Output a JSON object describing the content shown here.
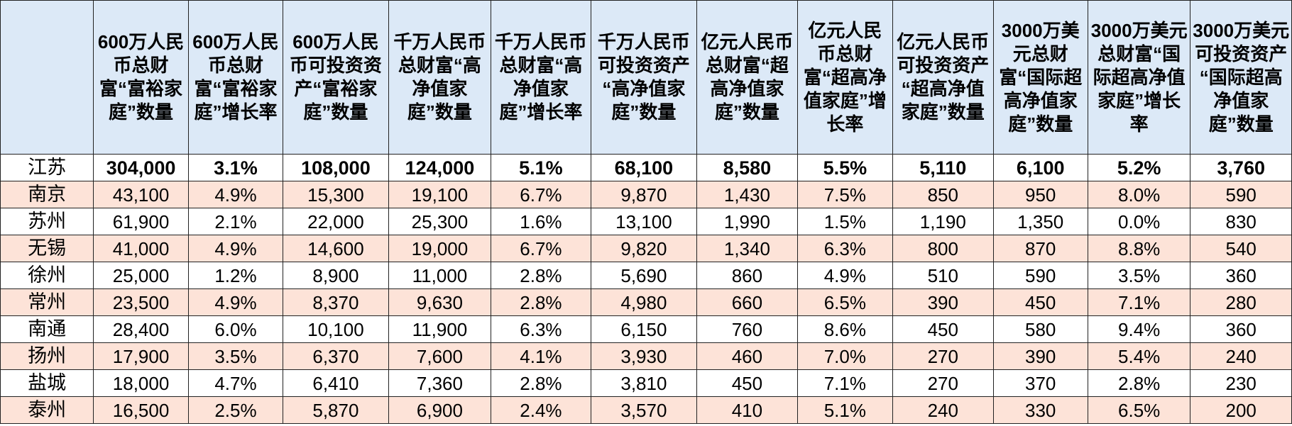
{
  "headers": [
    "",
    "600万人民币总财富“富裕家庭”数量",
    "600万人民币总财富“富裕家庭”增长率",
    "600万人民币可投资资产“富裕家庭”数量",
    "千万人民币总财富“高净值家庭”数量",
    "千万人民币总财富“高净值家庭”增长率",
    "千万人民币可投资资产 “高净值家庭”数量",
    "亿元人民币总财富“超高净值家庭”数量",
    "亿元人民币总财富“超高净值家庭”增长率",
    "亿元人民币可投资资产 “超高净值家庭”数量",
    "3000万美元总财富“国际超高净值家庭”数量",
    "3000万美元总财富“国际超高净值家庭”增长率",
    "3000万美元可投资资产 “国际超高净值家庭”数量"
  ],
  "rows": [
    [
      "江苏",
      "304,000",
      "3.1%",
      "108,000",
      "124,000",
      "5.1%",
      "68,100",
      "8,580",
      "5.5%",
      "5,110",
      "6,100",
      "5.2%",
      "3,760"
    ],
    [
      "南京",
      "43,100",
      "4.9%",
      "15,300",
      "19,100",
      "6.7%",
      "9,870",
      "1,430",
      "7.5%",
      "850",
      "950",
      "8.0%",
      "590"
    ],
    [
      "苏州",
      "61,900",
      "2.1%",
      "22,000",
      "25,300",
      "1.6%",
      "13,100",
      "1,990",
      "1.5%",
      "1,190",
      "1,350",
      "0.0%",
      "830"
    ],
    [
      "无锡",
      "41,000",
      "4.9%",
      "14,600",
      "19,000",
      "6.7%",
      "9,820",
      "1,340",
      "6.3%",
      "800",
      "870",
      "8.8%",
      "540"
    ],
    [
      "徐州",
      "25,000",
      "1.2%",
      "8,900",
      "11,000",
      "2.8%",
      "5,690",
      "860",
      "4.9%",
      "510",
      "590",
      "3.5%",
      "360"
    ],
    [
      "常州",
      "23,500",
      "4.9%",
      "8,370",
      "9,630",
      "2.8%",
      "4,980",
      "660",
      "6.5%",
      "390",
      "450",
      "7.1%",
      "280"
    ],
    [
      "南通",
      "28,400",
      "6.0%",
      "10,100",
      "11,900",
      "6.3%",
      "6,150",
      "760",
      "8.6%",
      "450",
      "580",
      "9.4%",
      "360"
    ],
    [
      "扬州",
      "17,900",
      "3.5%",
      "6,370",
      "7,600",
      "4.1%",
      "3,930",
      "460",
      "7.0%",
      "270",
      "390",
      "5.4%",
      "240"
    ],
    [
      "盐城",
      "18,000",
      "4.7%",
      "6,410",
      "7,360",
      "2.8%",
      "3,810",
      "450",
      "7.1%",
      "270",
      "370",
      "2.8%",
      "230"
    ],
    [
      "泰州",
      "16,500",
      "2.5%",
      "5,870",
      "6,900",
      "2.4%",
      "3,570",
      "410",
      "5.1%",
      "240",
      "330",
      "6.5%",
      "200"
    ]
  ]
}
